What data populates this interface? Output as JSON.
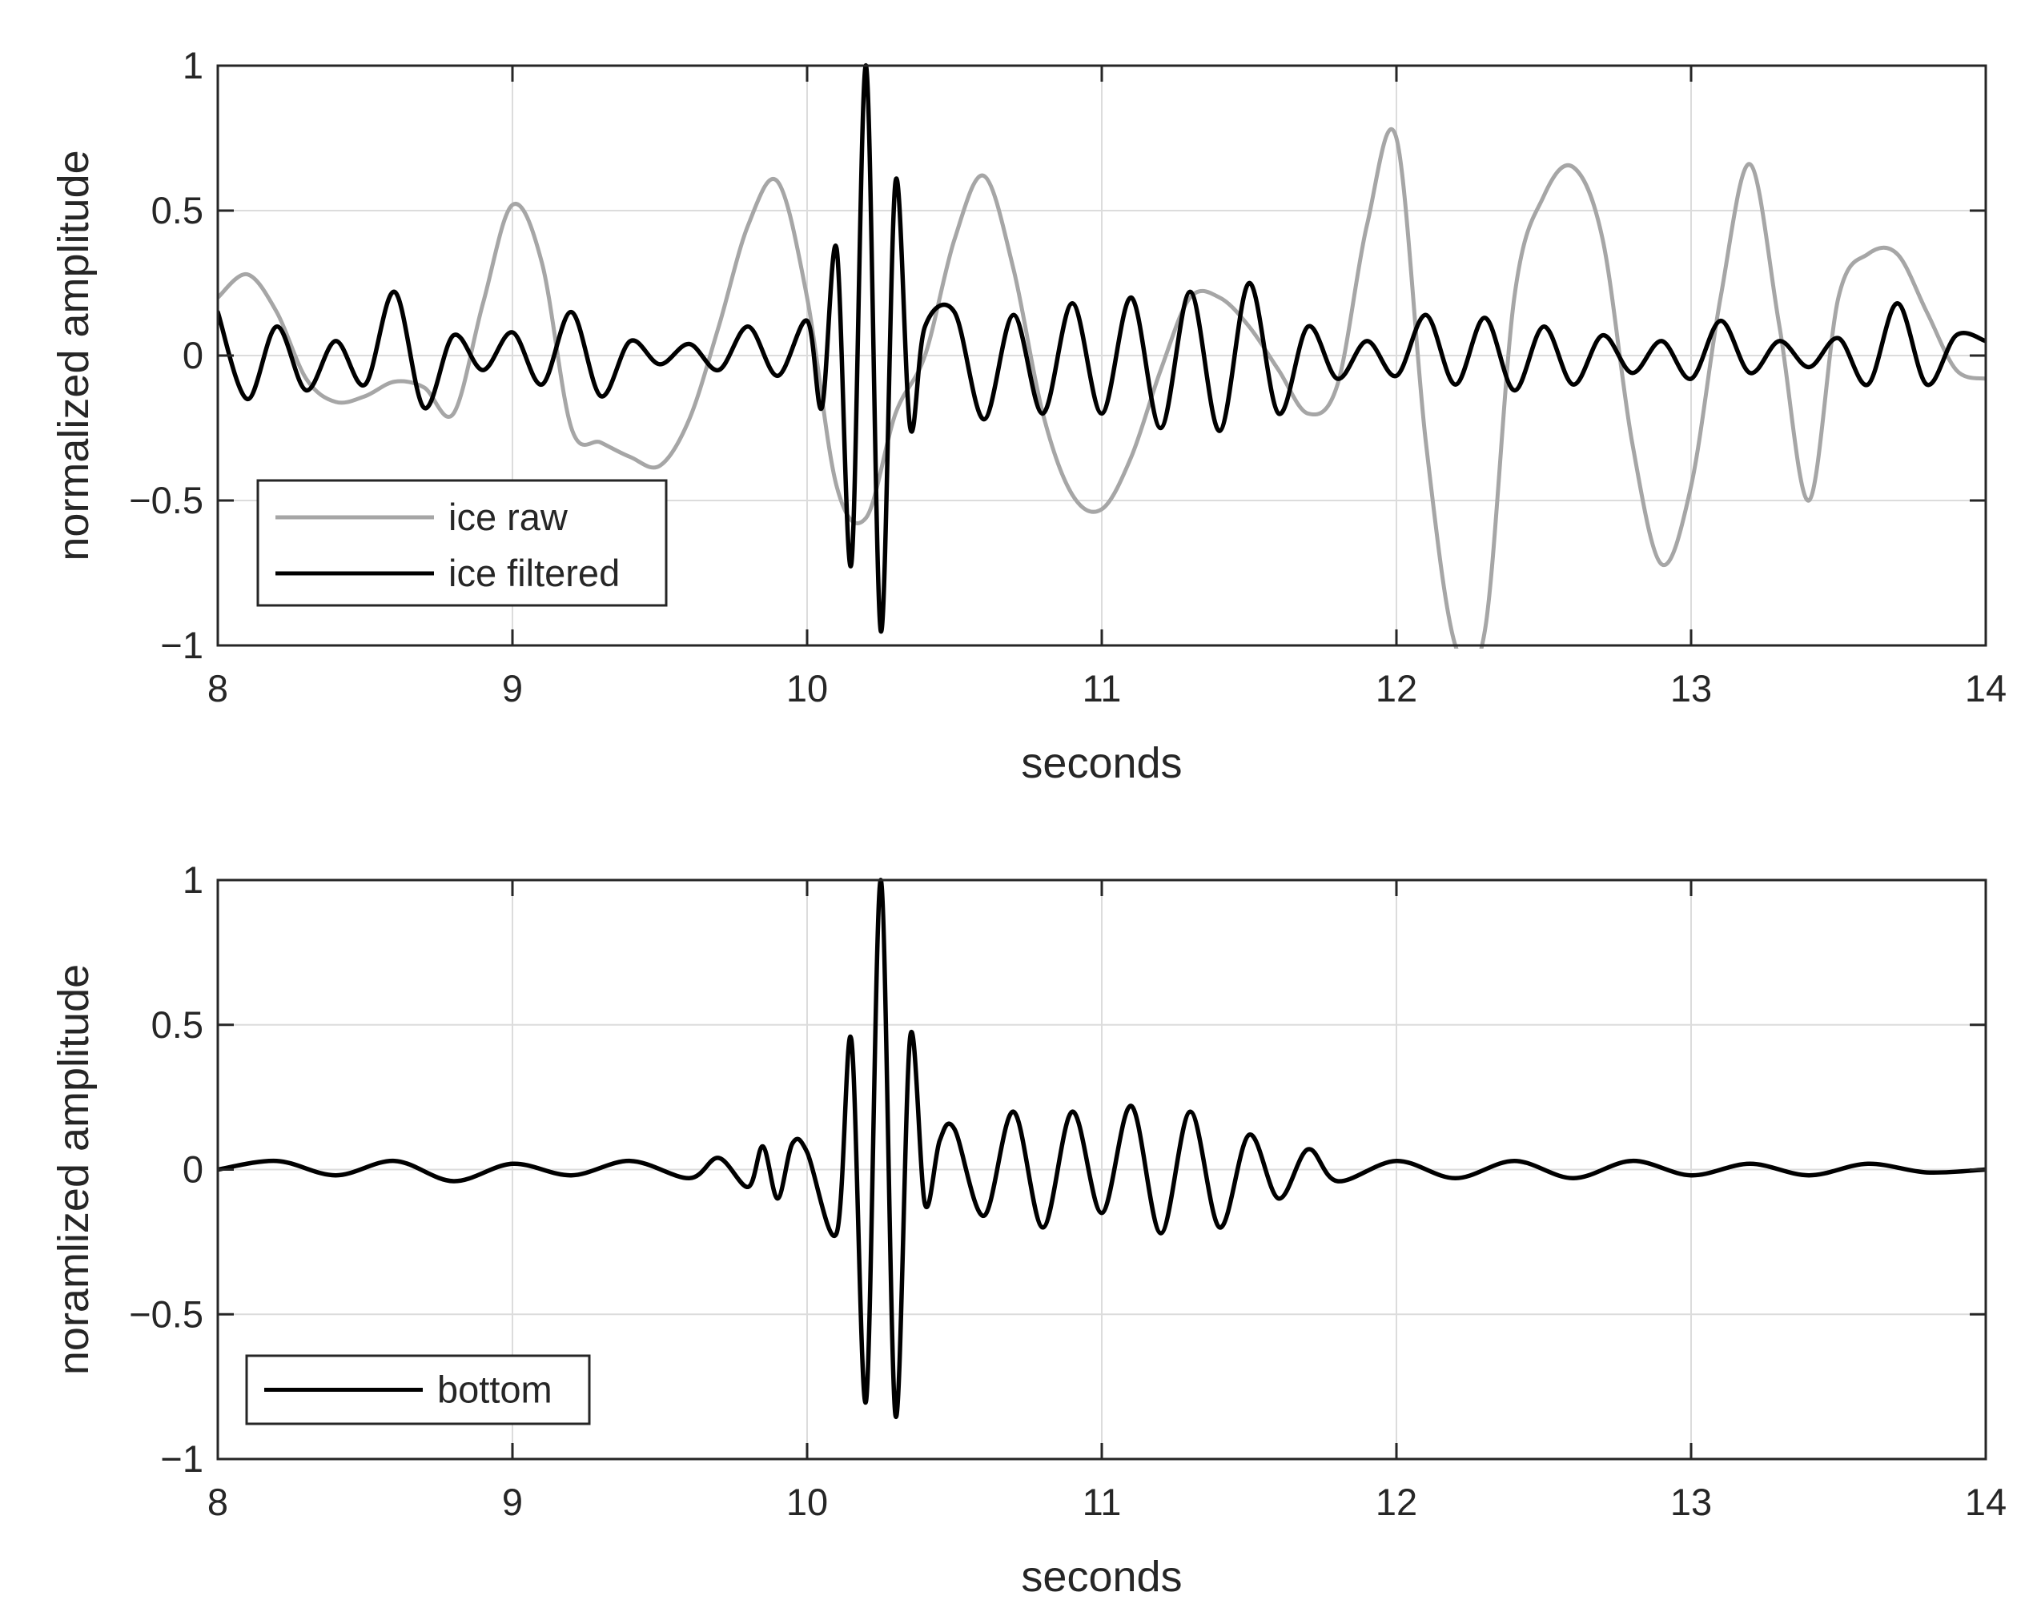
{
  "chart_data": [
    {
      "type": "line",
      "xlabel": "seconds",
      "ylabel": "normalized amplitude",
      "xlim": [
        8,
        14
      ],
      "ylim": [
        -1,
        1
      ],
      "xticks": [
        "8",
        "9",
        "10",
        "11",
        "12",
        "13",
        "14"
      ],
      "yticks": [
        "1",
        "0.5",
        "0",
        "−0.5",
        "−1"
      ],
      "grid": true,
      "legend": "bottom-left",
      "series": [
        {
          "name": "ice raw",
          "color": "#a6a6a6",
          "x": [
            8.0,
            8.1,
            8.2,
            8.3,
            8.4,
            8.5,
            8.6,
            8.7,
            8.8,
            8.9,
            9.0,
            9.1,
            9.2,
            9.3,
            9.4,
            9.5,
            9.6,
            9.7,
            9.8,
            9.9,
            10.0,
            10.1,
            10.2,
            10.3,
            10.4,
            10.5,
            10.6,
            10.7,
            10.8,
            10.9,
            11.0,
            11.1,
            11.2,
            11.3,
            11.4,
            11.5,
            11.6,
            11.7,
            11.8,
            11.9,
            12.0,
            12.1,
            12.2,
            12.3,
            12.4,
            12.5,
            12.6,
            12.7,
            12.8,
            12.9,
            13.0,
            13.1,
            13.2,
            13.3,
            13.4,
            13.5,
            13.6,
            13.7,
            13.8,
            13.9,
            14.0
          ],
          "y": [
            0.2,
            0.28,
            0.15,
            -0.08,
            -0.16,
            -0.14,
            -0.09,
            -0.11,
            -0.2,
            0.18,
            0.52,
            0.32,
            -0.25,
            -0.3,
            -0.35,
            -0.38,
            -0.22,
            0.1,
            0.45,
            0.6,
            0.2,
            -0.45,
            -0.56,
            -0.2,
            0.0,
            0.4,
            0.62,
            0.3,
            -0.2,
            -0.48,
            -0.53,
            -0.35,
            -0.05,
            0.2,
            0.2,
            0.1,
            -0.05,
            -0.2,
            -0.1,
            0.45,
            0.75,
            -0.3,
            -1.0,
            -0.95,
            0.2,
            0.55,
            0.65,
            0.4,
            -0.3,
            -0.72,
            -0.45,
            0.2,
            0.66,
            0.1,
            -0.5,
            0.2,
            0.35,
            0.35,
            0.15,
            -0.05,
            -0.08
          ]
        },
        {
          "name": "ice filtered",
          "color": "#000000",
          "x": [
            8.0,
            8.1,
            8.2,
            8.3,
            8.4,
            8.5,
            8.6,
            8.7,
            8.8,
            8.9,
            9.0,
            9.1,
            9.2,
            9.3,
            9.4,
            9.5,
            9.6,
            9.7,
            9.8,
            9.9,
            10.0,
            10.05,
            10.1,
            10.15,
            10.2,
            10.25,
            10.3,
            10.35,
            10.4,
            10.5,
            10.6,
            10.7,
            10.8,
            10.9,
            11.0,
            11.1,
            11.2,
            11.3,
            11.4,
            11.5,
            11.6,
            11.7,
            11.8,
            11.9,
            12.0,
            12.1,
            12.2,
            12.3,
            12.4,
            12.5,
            12.6,
            12.7,
            12.8,
            12.9,
            13.0,
            13.1,
            13.2,
            13.3,
            13.4,
            13.5,
            13.6,
            13.7,
            13.8,
            13.9,
            14.0
          ],
          "y": [
            0.15,
            -0.15,
            0.1,
            -0.12,
            0.05,
            -0.1,
            0.22,
            -0.18,
            0.07,
            -0.05,
            0.08,
            -0.1,
            0.15,
            -0.14,
            0.05,
            -0.03,
            0.04,
            -0.05,
            0.1,
            -0.07,
            0.12,
            -0.18,
            0.37,
            -0.72,
            1.0,
            -0.95,
            0.6,
            -0.25,
            0.1,
            0.15,
            -0.22,
            0.14,
            -0.2,
            0.18,
            -0.2,
            0.2,
            -0.25,
            0.22,
            -0.26,
            0.25,
            -0.2,
            0.1,
            -0.08,
            0.05,
            -0.07,
            0.14,
            -0.1,
            0.13,
            -0.12,
            0.1,
            -0.1,
            0.07,
            -0.06,
            0.05,
            -0.08,
            0.12,
            -0.06,
            0.05,
            -0.04,
            0.06,
            -0.1,
            0.18,
            -0.1,
            0.07,
            0.05
          ]
        }
      ]
    },
    {
      "type": "line",
      "xlabel": "seconds",
      "ylabel": "noramlized amplitude",
      "xlim": [
        8,
        14
      ],
      "ylim": [
        -1,
        1
      ],
      "xticks": [
        "8",
        "9",
        "10",
        "11",
        "12",
        "13",
        "14"
      ],
      "yticks": [
        "1",
        "0.5",
        "0",
        "−0.5",
        "−1"
      ],
      "grid": true,
      "legend": "bottom-left",
      "series": [
        {
          "name": "bottom",
          "color": "#000000",
          "x": [
            8.0,
            8.2,
            8.4,
            8.6,
            8.8,
            9.0,
            9.2,
            9.4,
            9.6,
            9.7,
            9.8,
            9.85,
            9.9,
            9.95,
            10.0,
            10.1,
            10.15,
            10.2,
            10.25,
            10.3,
            10.35,
            10.4,
            10.45,
            10.5,
            10.6,
            10.7,
            10.8,
            10.9,
            11.0,
            11.1,
            11.2,
            11.3,
            11.4,
            11.5,
            11.6,
            11.7,
            11.8,
            12.0,
            12.2,
            12.4,
            12.6,
            12.8,
            13.0,
            13.2,
            13.4,
            13.6,
            13.8,
            14.0
          ],
          "y": [
            0.0,
            0.03,
            -0.02,
            0.03,
            -0.04,
            0.02,
            -0.02,
            0.03,
            -0.03,
            0.04,
            -0.06,
            0.08,
            -0.1,
            0.09,
            0.06,
            -0.22,
            0.45,
            -0.8,
            1.0,
            -0.85,
            0.46,
            -0.12,
            0.1,
            0.14,
            -0.16,
            0.2,
            -0.2,
            0.2,
            -0.15,
            0.22,
            -0.22,
            0.2,
            -0.2,
            0.12,
            -0.1,
            0.07,
            -0.04,
            0.03,
            -0.03,
            0.03,
            -0.03,
            0.03,
            -0.02,
            0.02,
            -0.02,
            0.02,
            -0.01,
            0.0
          ]
        }
      ]
    }
  ]
}
